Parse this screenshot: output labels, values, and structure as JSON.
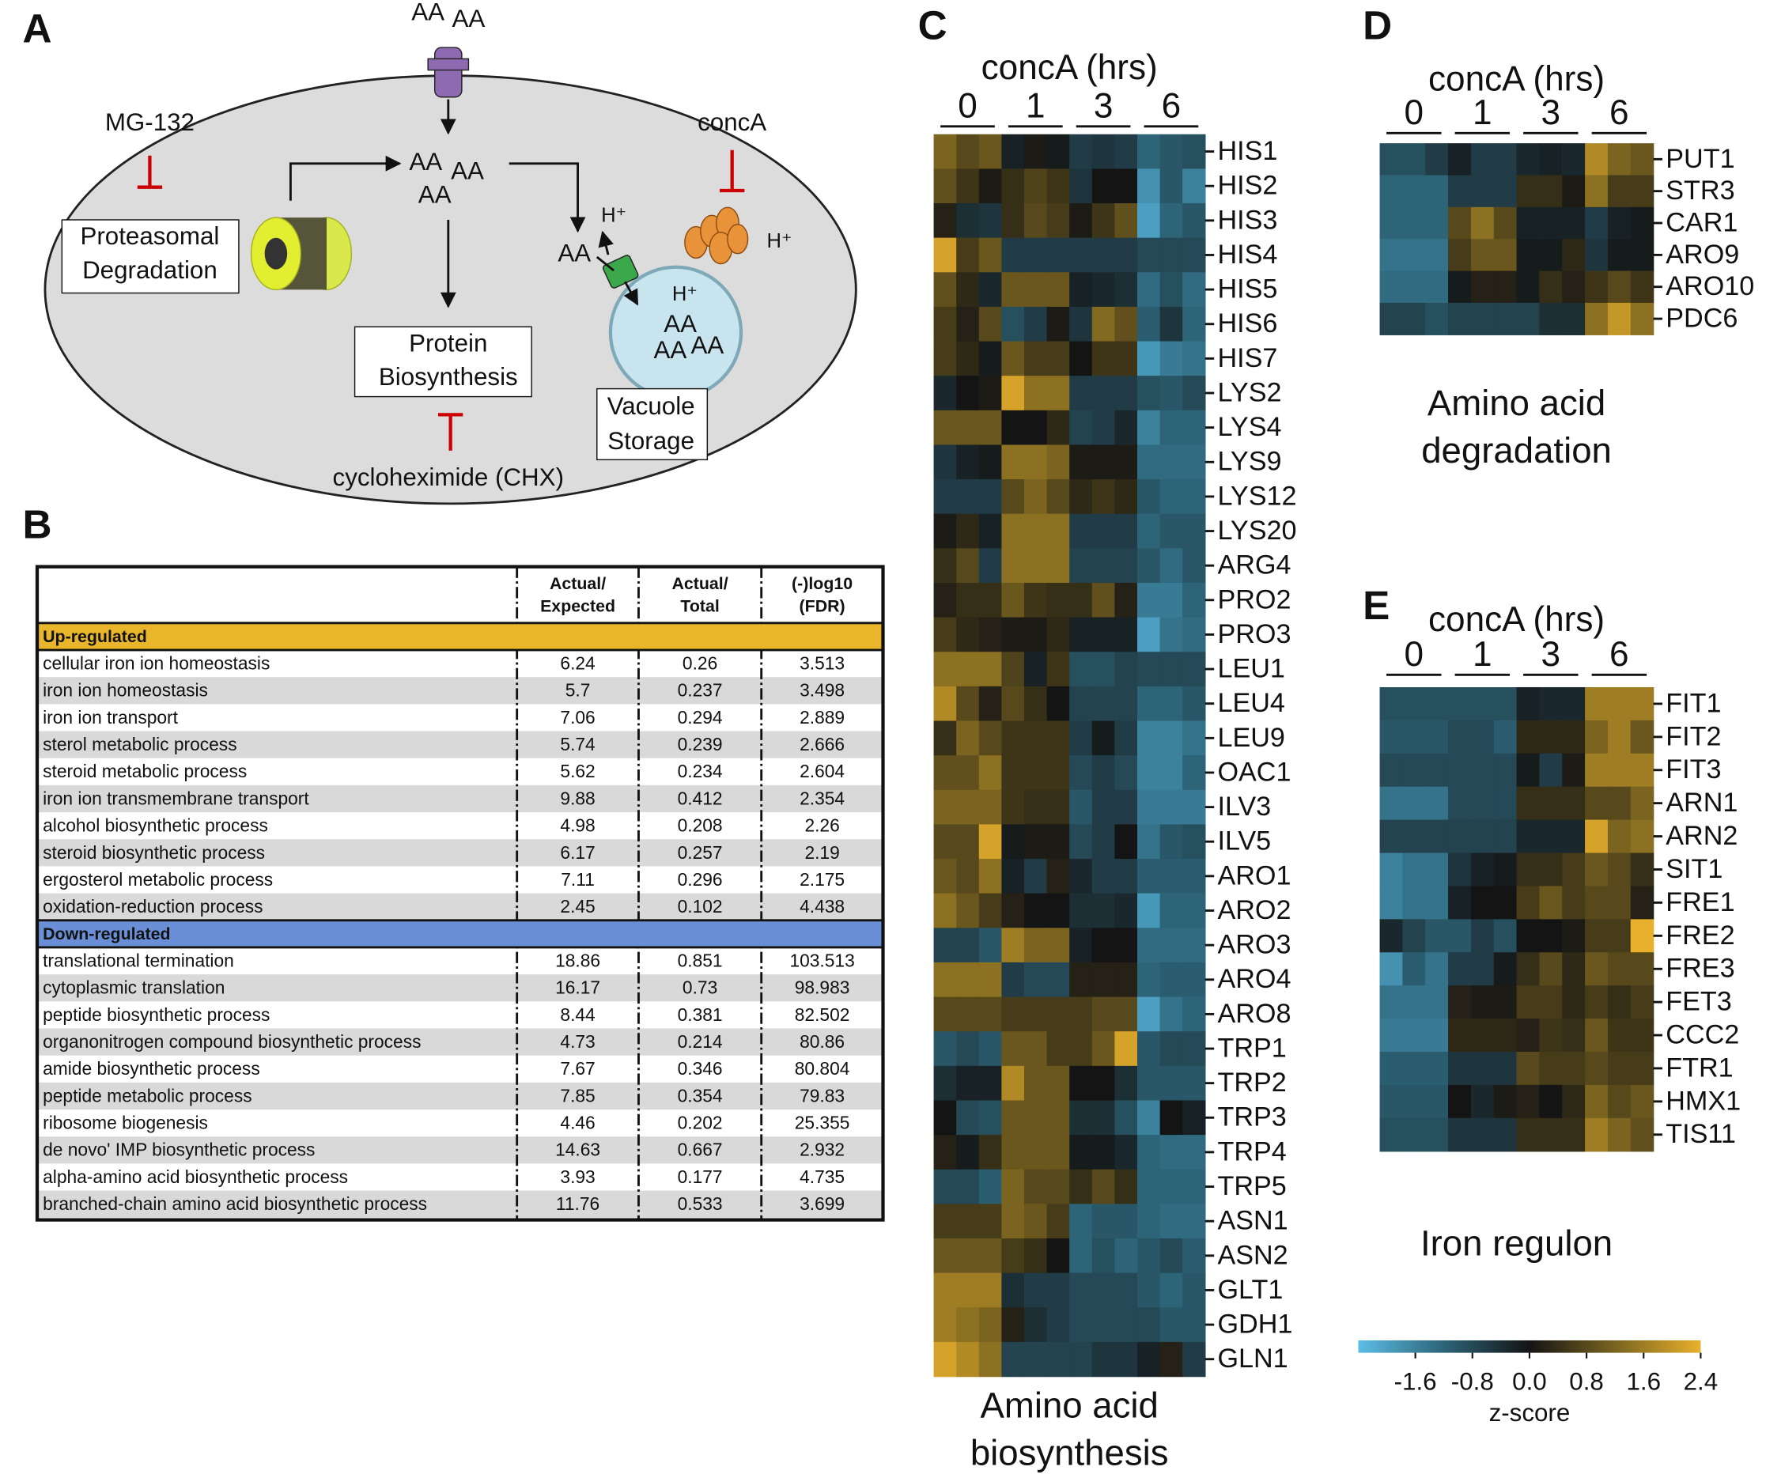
{
  "panel_labels": [
    "A",
    "B",
    "C",
    "D",
    "E"
  ],
  "diagram": {
    "mg132": "MG-132",
    "conca": "concA",
    "proteasomal": [
      "Proteasomal",
      "Degradation"
    ],
    "protein": [
      "Protein",
      "Biosynthesis"
    ],
    "vacuole": [
      "Vacuole",
      "Storage"
    ],
    "chx": "cycloheximide (CHX)",
    "aa": [
      "AA",
      "AA",
      "AA",
      "AA",
      "AA",
      "AA",
      "AA",
      "AA",
      "AA"
    ],
    "h": [
      "H⁺",
      "H⁺",
      "H⁺"
    ]
  },
  "table": {
    "header": [
      [
        "Actual/",
        "Expected"
      ],
      [
        "Actual/",
        "Total"
      ],
      [
        "(-)log10",
        "(FDR)"
      ]
    ],
    "sections": [
      {
        "title": "Up-regulated",
        "rows": [
          [
            "cellular iron ion homeostasis",
            6.24,
            0.26,
            3.513
          ],
          [
            "iron ion homeostasis",
            5.7,
            0.237,
            3.498
          ],
          [
            "iron ion transport",
            7.06,
            0.294,
            2.889
          ],
          [
            "sterol metabolic process",
            5.74,
            0.239,
            2.666
          ],
          [
            "steroid metabolic process",
            5.62,
            0.234,
            2.604
          ],
          [
            "iron ion transmembrane transport",
            9.88,
            0.412,
            2.354
          ],
          [
            "alcohol biosynthetic process",
            4.98,
            0.208,
            2.26
          ],
          [
            "steroid biosynthetic process",
            6.17,
            0.257,
            2.19
          ],
          [
            "ergosterol metabolic process",
            7.11,
            0.296,
            2.175
          ],
          [
            "oxidation-reduction process",
            2.45,
            0.102,
            4.438
          ]
        ]
      },
      {
        "title": "Down-regulated",
        "rows": [
          [
            "translational termination",
            18.86,
            0.851,
            103.513
          ],
          [
            "cytoplasmic translation",
            16.17,
            0.73,
            98.983
          ],
          [
            "peptide biosynthetic process",
            8.44,
            0.381,
            82.502
          ],
          [
            "organonitrogen compound biosynthetic process",
            4.73,
            0.214,
            80.86
          ],
          [
            "amide biosynthetic process",
            7.67,
            0.346,
            80.804
          ],
          [
            "peptide metabolic process",
            7.85,
            0.354,
            79.83
          ],
          [
            "ribosome biogenesis",
            4.46,
            0.202,
            25.355
          ],
          [
            "de novo' IMP biosynthetic process",
            14.63,
            0.667,
            2.932
          ],
          [
            "alpha-amino acid biosynthetic process",
            3.93,
            0.177,
            4.735
          ],
          [
            "branched-chain amino acid biosynthetic process",
            11.76,
            0.533,
            3.699
          ]
        ]
      }
    ]
  },
  "colorbar": {
    "label": "z-score",
    "lim": [
      -2.4,
      2.4
    ],
    "ticks": [
      -1.6,
      -0.8,
      {
        "value": 0,
        "label": "0.0"
      },
      0.8,
      1.6,
      2.4
    ],
    "colors": [
      "#5cbde6",
      "#2d6478",
      "#141414",
      "#7a6420",
      "#e8b02c"
    ]
  },
  "chart_data": [
    {
      "type": "heatmap",
      "title": "concA (hrs)",
      "groups": [
        "0",
        "1",
        "3",
        "6"
      ],
      "rows": [
        "HIS1",
        "HIS2",
        "HIS3",
        "HIS4",
        "HIS5",
        "HIS6",
        "HIS7",
        "LYS2",
        "LYS4",
        "LYS9",
        "LYS12",
        "LYS20",
        "ARG4",
        "PRO2",
        "PRO3",
        "LEU1",
        "LEU4",
        "LEU9",
        "OAC1",
        "ILV3",
        "ILV5",
        "ARO1",
        "ARO2",
        "ARO3",
        "ARO4",
        "ARO8",
        "TRP1",
        "TRP2",
        "TRP3",
        "TRP4",
        "TRP5",
        "ASN1",
        "ASN2",
        "GLT1",
        "GDH1",
        "GLN1"
      ],
      "values": [
        [
          1.2,
          0.8,
          1.0,
          -0.2,
          0.1,
          -0.1,
          -0.6,
          -0.5,
          -0.6,
          -1.2,
          -1.0,
          -0.9
        ],
        [
          0.9,
          0.5,
          0.1,
          0.4,
          0.7,
          0.5,
          -0.5,
          0.0,
          0.0,
          -1.8,
          -1.0,
          -1.6
        ],
        [
          0.2,
          -0.4,
          -0.5,
          0.4,
          0.8,
          0.6,
          0.1,
          0.5,
          0.9,
          -2.0,
          -1.2,
          -1.0
        ],
        [
          2.2,
          0.6,
          1.0,
          -0.6,
          -0.6,
          -0.6,
          -0.6,
          -0.6,
          -0.6,
          -0.8,
          -0.8,
          -0.8
        ],
        [
          0.9,
          0.3,
          -0.3,
          1.0,
          1.0,
          1.0,
          -0.2,
          -0.3,
          -0.4,
          -1.3,
          -0.9,
          -1.3
        ],
        [
          0.6,
          0.2,
          0.8,
          -0.9,
          -0.6,
          0.1,
          -0.5,
          1.3,
          0.9,
          -1.1,
          -0.5,
          -1.2
        ],
        [
          0.6,
          0.3,
          -0.1,
          1.0,
          0.6,
          0.6,
          0.0,
          0.5,
          0.5,
          -1.9,
          -1.5,
          -1.4
        ],
        [
          -0.3,
          0.0,
          0.1,
          2.2,
          1.4,
          1.4,
          -0.6,
          -0.6,
          -0.6,
          -0.9,
          -1.0,
          -0.8
        ],
        [
          1.0,
          1.0,
          1.0,
          0.0,
          0.0,
          0.3,
          -0.7,
          -0.6,
          -0.3,
          -1.6,
          -1.2,
          -1.2
        ],
        [
          -0.5,
          -0.2,
          -0.1,
          1.4,
          1.4,
          1.2,
          0.1,
          0.1,
          0.1,
          -1.3,
          -1.3,
          -1.3
        ],
        [
          -0.6,
          -0.6,
          -0.6,
          0.8,
          1.2,
          0.8,
          0.3,
          0.5,
          0.3,
          -1.0,
          -1.2,
          -1.2
        ],
        [
          0.1,
          0.3,
          -0.2,
          1.4,
          1.4,
          1.4,
          -0.6,
          -0.6,
          -0.6,
          -1.2,
          -1.0,
          -1.0
        ],
        [
          0.4,
          0.8,
          -0.6,
          1.4,
          1.4,
          1.4,
          -0.7,
          -0.7,
          -0.7,
          -1.0,
          -1.3,
          -1.0
        ],
        [
          0.2,
          0.4,
          0.4,
          1.0,
          0.5,
          0.4,
          0.4,
          0.9,
          0.2,
          -1.5,
          -1.5,
          -1.2
        ],
        [
          0.6,
          0.3,
          0.2,
          0.1,
          0.1,
          0.3,
          -0.2,
          -0.2,
          -0.2,
          -2.0,
          -1.4,
          -1.3
        ],
        [
          1.4,
          1.4,
          1.4,
          0.7,
          -0.2,
          0.5,
          -0.9,
          -0.9,
          -0.7,
          -0.8,
          -0.8,
          -0.8
        ],
        [
          1.8,
          0.8,
          0.2,
          0.8,
          0.4,
          0.0,
          -0.7,
          -0.7,
          -0.7,
          -1.2,
          -1.2,
          -1.0
        ],
        [
          0.4,
          1.2,
          0.8,
          0.5,
          0.5,
          0.5,
          -0.6,
          -0.1,
          -0.6,
          -1.6,
          -1.6,
          -1.4
        ],
        [
          0.9,
          0.9,
          1.4,
          0.5,
          0.5,
          0.5,
          -0.8,
          -0.6,
          -0.8,
          -1.6,
          -1.6,
          -1.2
        ],
        [
          1.2,
          1.2,
          1.2,
          0.5,
          0.4,
          0.4,
          -1.0,
          -0.6,
          -0.6,
          -1.5,
          -1.5,
          -1.5
        ],
        [
          0.8,
          0.8,
          2.2,
          -0.1,
          0.1,
          0.1,
          -0.8,
          -0.6,
          0.0,
          -1.4,
          -1.0,
          -0.9
        ],
        [
          1.0,
          0.8,
          1.4,
          -0.2,
          -0.6,
          0.2,
          -0.3,
          -0.6,
          -0.6,
          -1.1,
          -1.1,
          -1.1
        ],
        [
          1.4,
          1.0,
          0.6,
          0.2,
          0.0,
          0.0,
          -0.4,
          -0.4,
          -0.3,
          -1.9,
          -1.2,
          -1.2
        ],
        [
          -0.7,
          -0.7,
          -1.0,
          1.6,
          1.2,
          1.2,
          -0.2,
          0.0,
          0.0,
          -1.3,
          -1.3,
          -1.3
        ],
        [
          1.4,
          1.4,
          1.4,
          -0.6,
          -0.8,
          -0.8,
          0.2,
          0.2,
          0.2,
          -1.2,
          -1.1,
          -1.1
        ],
        [
          0.8,
          0.8,
          0.8,
          0.6,
          0.6,
          0.6,
          0.6,
          0.8,
          0.8,
          -2.0,
          -1.4,
          -1.2
        ],
        [
          -1.0,
          -0.8,
          -1.0,
          1.0,
          1.0,
          0.6,
          0.6,
          1.0,
          2.2,
          -1.0,
          -0.8,
          -0.8
        ],
        [
          -0.4,
          -0.2,
          -0.2,
          1.8,
          1.0,
          1.0,
          0.0,
          0.0,
          -0.4,
          -1.0,
          -1.0,
          -1.0
        ],
        [
          0.0,
          -0.8,
          -0.9,
          1.0,
          1.0,
          1.0,
          -0.4,
          -0.4,
          -0.9,
          -1.6,
          0.0,
          -0.2
        ],
        [
          0.2,
          -0.1,
          0.4,
          1.0,
          1.0,
          1.0,
          -0.1,
          -0.1,
          -0.3,
          -1.2,
          -1.3,
          -1.3
        ],
        [
          -0.8,
          -0.8,
          -1.1,
          1.2,
          0.8,
          0.8,
          0.4,
          0.8,
          0.4,
          -1.2,
          -1.2,
          -1.2
        ],
        [
          0.6,
          0.6,
          0.6,
          1.2,
          1.0,
          0.6,
          -1.2,
          -1.0,
          -1.0,
          -1.2,
          -1.3,
          -1.3
        ],
        [
          1.0,
          1.0,
          1.0,
          0.6,
          0.4,
          0.0,
          -1.2,
          -0.9,
          -1.2,
          -1.0,
          -0.8,
          -1.1
        ],
        [
          1.6,
          1.6,
          1.6,
          -0.4,
          -0.6,
          -0.6,
          -0.8,
          -0.8,
          -0.8,
          -1.0,
          -1.2,
          -1.0
        ],
        [
          1.6,
          1.4,
          1.2,
          0.2,
          -0.4,
          -0.6,
          -0.8,
          -0.8,
          -0.8,
          -0.8,
          -1.0,
          -1.0
        ],
        [
          2.2,
          1.8,
          1.4,
          -0.7,
          -0.7,
          -0.7,
          -0.7,
          -0.5,
          -0.5,
          -0.2,
          0.2,
          -0.6
        ]
      ],
      "caption": [
        "Amino acid",
        "biosynthesis"
      ]
    },
    {
      "type": "heatmap",
      "title": "concA (hrs)",
      "groups": [
        "0",
        "1",
        "3",
        "6"
      ],
      "rows": [
        "PUT1",
        "STR3",
        "CAR1",
        "ARO9",
        "ARO10",
        "PDC6"
      ],
      "values": [
        [
          -0.9,
          -0.9,
          -0.6,
          -0.2,
          -0.6,
          -0.6,
          -0.3,
          -0.2,
          -0.3,
          1.8,
          1.2,
          1.0
        ],
        [
          -1.2,
          -1.2,
          -1.2,
          -0.6,
          -0.6,
          -0.6,
          0.4,
          0.4,
          0.1,
          1.4,
          0.6,
          0.6
        ],
        [
          -1.2,
          -1.2,
          -1.2,
          0.8,
          1.4,
          0.8,
          -0.2,
          -0.2,
          -0.2,
          -0.6,
          -0.2,
          -0.1
        ],
        [
          -1.4,
          -1.4,
          -1.4,
          0.6,
          1.0,
          1.0,
          -0.1,
          -0.1,
          0.3,
          -0.5,
          -0.1,
          -0.1
        ],
        [
          -1.3,
          -1.3,
          -1.3,
          -0.1,
          0.2,
          0.2,
          -0.1,
          0.4,
          0.2,
          0.5,
          0.8,
          0.5
        ],
        [
          -0.7,
          -0.7,
          -0.9,
          -0.7,
          -0.7,
          -0.7,
          -0.7,
          -0.4,
          -0.4,
          1.4,
          2.0,
          1.4
        ]
      ],
      "caption": [
        "Amino acid",
        "degradation"
      ]
    },
    {
      "type": "heatmap",
      "title": "concA (hrs)",
      "groups": [
        "0",
        "1",
        "3",
        "6"
      ],
      "rows": [
        "FIT1",
        "FIT2",
        "FIT3",
        "ARN1",
        "ARN2",
        "SIT1",
        "FRE1",
        "FRE2",
        "FRE3",
        "FET3",
        "CCC2",
        "FTR1",
        "HMX1",
        "TIS11"
      ],
      "values": [
        [
          -0.9,
          -0.9,
          -0.9,
          -0.9,
          -0.9,
          -0.9,
          -0.2,
          -0.3,
          -0.3,
          1.6,
          1.6,
          1.6
        ],
        [
          -1.0,
          -1.0,
          -1.0,
          -0.8,
          -0.8,
          -1.1,
          0.3,
          0.3,
          0.3,
          1.2,
          1.6,
          1.0
        ],
        [
          -0.8,
          -0.8,
          -0.8,
          -0.8,
          -0.8,
          -0.8,
          -0.1,
          -0.6,
          0.1,
          1.6,
          1.6,
          1.6
        ],
        [
          -1.4,
          -1.4,
          -1.4,
          -0.8,
          -0.8,
          -0.8,
          0.4,
          0.4,
          0.4,
          0.8,
          0.8,
          1.2
        ],
        [
          -0.7,
          -0.7,
          -0.7,
          -0.7,
          -0.7,
          -0.7,
          -0.3,
          -0.3,
          -0.3,
          2.2,
          1.2,
          1.4
        ],
        [
          -1.6,
          -1.4,
          -1.4,
          -0.5,
          -0.2,
          -0.1,
          0.4,
          0.4,
          0.6,
          1.0,
          0.8,
          0.4
        ],
        [
          -1.6,
          -1.4,
          -1.4,
          -0.2,
          0.0,
          0.0,
          0.6,
          1.0,
          0.6,
          0.8,
          0.8,
          0.2
        ],
        [
          -0.3,
          -0.7,
          -1.0,
          -1.0,
          -0.6,
          -0.9,
          0.0,
          0.0,
          0.1,
          0.6,
          0.6,
          2.4
        ],
        [
          -1.8,
          -1.1,
          -1.4,
          -0.6,
          -0.6,
          -0.1,
          0.4,
          0.8,
          0.3,
          1.0,
          0.8,
          0.8
        ],
        [
          -1.4,
          -1.4,
          -1.4,
          0.2,
          0.1,
          0.1,
          0.6,
          0.6,
          0.3,
          0.6,
          0.4,
          0.6
        ],
        [
          -1.5,
          -1.5,
          -1.5,
          0.3,
          0.3,
          0.3,
          0.2,
          0.5,
          0.4,
          1.0,
          0.5,
          0.5
        ],
        [
          -1.1,
          -1.1,
          -1.1,
          -0.5,
          -0.5,
          -0.5,
          0.8,
          0.6,
          0.6,
          0.8,
          0.6,
          0.6
        ],
        [
          -1.0,
          -1.0,
          -1.0,
          0.0,
          -0.3,
          0.1,
          0.2,
          0.0,
          0.3,
          1.2,
          0.8,
          1.0
        ],
        [
          -0.9,
          -0.9,
          -0.9,
          -0.5,
          -0.5,
          -0.5,
          0.4,
          0.4,
          0.4,
          1.6,
          1.2,
          0.9
        ]
      ],
      "caption": [
        "Iron regulon"
      ]
    }
  ]
}
